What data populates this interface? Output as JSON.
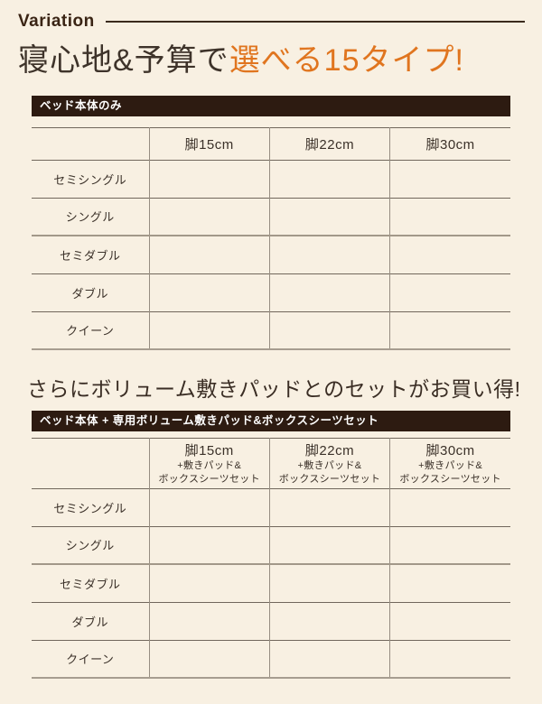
{
  "header": {
    "section_label": "Variation",
    "title_prefix": "寝心地&予算で",
    "title_highlight": "選べる15タイプ!"
  },
  "set_section": {
    "subtitle": "さらにボリューム敷きパッドとのセットがお買い得!"
  },
  "tables": [
    {
      "banner": "ベッド本体のみ",
      "columns": [
        {
          "main": "脚15cm"
        },
        {
          "main": "脚22cm"
        },
        {
          "main": "脚30cm"
        }
      ],
      "rows": [
        "セミシングル",
        "シングル",
        "セミダブル",
        "ダブル",
        "クイーン"
      ]
    },
    {
      "banner": "ベッド本体 + 専用ボリューム敷きパッド&ボックスシーツセット",
      "columns": [
        {
          "main": "脚15cm",
          "sub_line1": "+敷きパッド&",
          "sub_line2": "ボックスシーツセット"
        },
        {
          "main": "脚22cm",
          "sub_line1": "+敷きパッド&",
          "sub_line2": "ボックスシーツセット"
        },
        {
          "main": "脚30cm",
          "sub_line1": "+敷きパッド&",
          "sub_line2": "ボックスシーツセット"
        }
      ],
      "rows": [
        "セミシングル",
        "シングル",
        "セミダブル",
        "ダブル",
        "クイーン"
      ]
    }
  ],
  "colors": {
    "background": "#f8f0e2",
    "accent_orange": "#e0751f",
    "banner_brown": "#2d1b11",
    "heading_brown": "#3e332a"
  }
}
